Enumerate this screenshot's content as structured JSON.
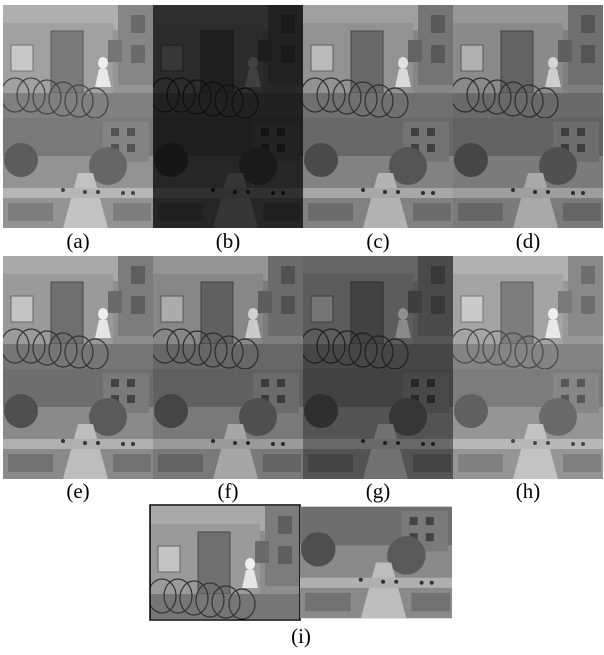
{
  "labels": [
    "(a)",
    "(b)",
    "(c)",
    "(d)",
    "(e)",
    "(f)",
    "(g)",
    "(h)",
    "(i)"
  ]
}
